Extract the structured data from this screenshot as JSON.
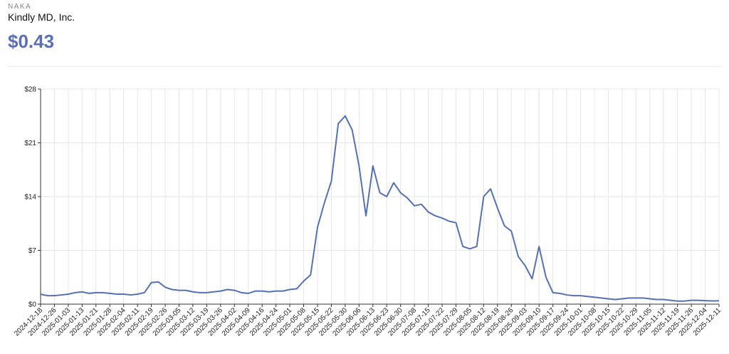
{
  "header": {
    "ticker": "NAKA",
    "name": "Kindly MD, Inc.",
    "price": "$0.43"
  },
  "chart_data": {
    "type": "line",
    "categories": [
      "2024-12-18",
      null,
      "2024-12-26",
      null,
      "2025-01-03",
      null,
      "2025-01-13",
      null,
      "2025-01-21",
      null,
      "2025-01-28",
      null,
      "2025-02-04",
      null,
      "2025-02-11",
      null,
      "2025-02-19",
      null,
      "2025-02-26",
      null,
      "2025-03-05",
      null,
      "2025-03-12",
      null,
      "2025-03-19",
      null,
      "2025-03-26",
      null,
      "2025-04-02",
      null,
      "2025-04-09",
      null,
      "2025-04-16",
      null,
      "2025-04-24",
      null,
      "2025-05-01",
      null,
      "2025-05-08",
      null,
      "2025-05-15",
      null,
      "2025-05-22",
      null,
      "2025-05-30",
      null,
      "2025-06-06",
      null,
      "2025-06-13",
      null,
      "2025-06-23",
      null,
      "2025-06-30",
      null,
      "2025-07-08",
      null,
      "2025-07-15",
      null,
      "2025-07-22",
      null,
      "2025-07-29",
      null,
      "2025-08-05",
      null,
      "2025-08-12",
      null,
      "2025-08-19",
      null,
      "2025-08-26",
      null,
      "2025-09-03",
      null,
      "2025-09-10",
      null,
      "2025-09-17",
      null,
      "2025-09-24",
      null,
      "2025-10-01",
      null,
      "2025-10-08",
      null,
      "2025-10-15",
      null,
      "2025-10-22",
      null,
      "2025-10-29",
      null,
      "2025-11-05",
      null,
      "2025-11-12",
      null,
      "2025-11-19",
      null,
      "2025-11-26",
      null,
      "2025-12-04",
      null,
      "2025-12-11"
    ],
    "values": [
      1.3,
      1.1,
      1.1,
      1.2,
      1.3,
      1.5,
      1.6,
      1.4,
      1.5,
      1.5,
      1.4,
      1.3,
      1.3,
      1.2,
      1.3,
      1.5,
      2.8,
      2.9,
      2.2,
      1.9,
      1.8,
      1.8,
      1.6,
      1.5,
      1.5,
      1.6,
      1.7,
      1.9,
      1.8,
      1.5,
      1.4,
      1.7,
      1.7,
      1.6,
      1.7,
      1.7,
      1.9,
      2.0,
      3.0,
      3.8,
      10,
      13.2,
      16,
      23.5,
      24.5,
      22.7,
      18,
      11.5,
      18,
      14.5,
      14,
      15.8,
      14.5,
      13.8,
      12.8,
      13,
      12,
      11.5,
      11.2,
      10.8,
      10.6,
      7.5,
      7.2,
      7.5,
      14,
      15,
      12.5,
      10.2,
      9.5,
      6.2,
      5,
      3.3,
      7.5,
      3.5,
      1.5,
      1.4,
      1.2,
      1.1,
      1.1,
      1.0,
      0.9,
      0.8,
      0.7,
      0.6,
      0.7,
      0.8,
      0.8,
      0.8,
      0.7,
      0.6,
      0.6,
      0.5,
      0.4,
      0.4,
      0.5,
      0.5,
      0.45,
      0.42,
      0.43
    ],
    "color": "#5571b3",
    "ylim": [
      0,
      28
    ],
    "yticks": [
      {
        "value": 0,
        "label": "$0"
      },
      {
        "value": 7,
        "label": "$7"
      },
      {
        "value": 14,
        "label": "$14"
      },
      {
        "value": 21,
        "label": "$21"
      },
      {
        "value": 28,
        "label": "$28"
      }
    ],
    "grid": true
  }
}
